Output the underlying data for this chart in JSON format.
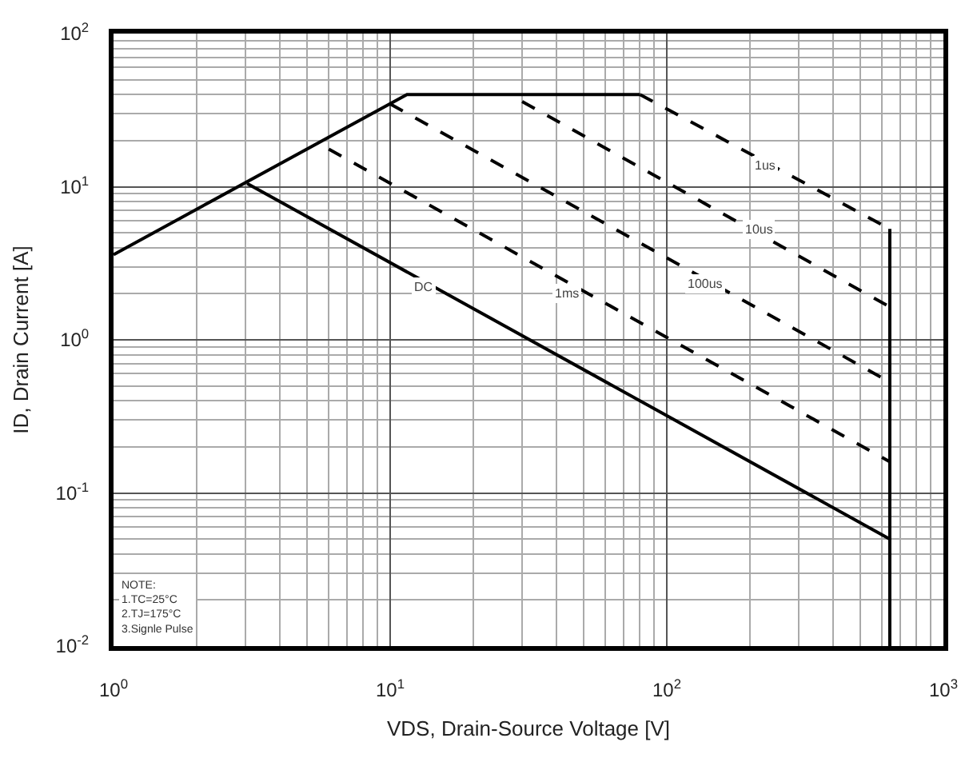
{
  "chart_data": {
    "type": "line",
    "xlabel": "VDS, Drain-Source Voltage [V]",
    "ylabel": "ID, Drain Current [A]",
    "log": "xy",
    "xlim": [
      1,
      1000
    ],
    "ylim": [
      0.01,
      100
    ],
    "xticks": [
      {
        "value": 1,
        "label": "10$^{0}$"
      },
      {
        "value": 10,
        "label": "10$^{1}$"
      },
      {
        "value": 100,
        "label": "10$^{2}$"
      },
      {
        "value": 1000,
        "label": "10$^{3}$"
      }
    ],
    "yticks": [
      {
        "value": 0.01,
        "label": "10$^{-2}$"
      },
      {
        "value": 0.1,
        "label": "10$^{-1}$"
      },
      {
        "value": 1,
        "label": "10$^{0}$"
      },
      {
        "value": 10,
        "label": "10$^{1}$"
      },
      {
        "value": 100,
        "label": "10$^{2}$"
      }
    ],
    "grid": true,
    "marker": "none",
    "series": [
      {
        "color": "#000000",
        "line_style": "solid",
        "x": [
          1,
          11.5,
          80
        ],
        "values": [
          3.6,
          40,
          40
        ]
      },
      {
        "color": "#000000",
        "line_style": "dashed",
        "x": [
          80,
          640
        ],
        "values": [
          40,
          5.3
        ]
      },
      {
        "color": "#000000",
        "line_style": "solid",
        "x": [
          640,
          640
        ],
        "values": [
          5.3,
          0.01
        ]
      },
      {
        "color": "#000000",
        "line_style": "dashed",
        "x": [
          30,
          640
        ],
        "values": [
          36,
          1.64
        ]
      },
      {
        "color": "#000000",
        "line_style": "dashed",
        "x": [
          10,
          640
        ],
        "values": [
          34.7,
          0.53
        ]
      },
      {
        "color": "#000000",
        "line_style": "dashed",
        "x": [
          6,
          640
        ],
        "values": [
          17.6,
          0.16
        ]
      },
      {
        "color": "#000000",
        "line_style": "solid",
        "x": [
          3.04,
          640
        ],
        "values": [
          10.5,
          0.05
        ]
      }
    ],
    "annotations": [
      {
        "text": "1us",
        "x": 226,
        "y": 13.9
      },
      {
        "text": "10us",
        "x": 215,
        "y": 5.2
      },
      {
        "text": "100us",
        "x": 137,
        "y": 2.3
      },
      {
        "text": "1ms",
        "x": 43.6,
        "y": 2.0
      },
      {
        "text": "DC",
        "x": 13.3,
        "y": 2.2
      },
      "NOTE:",
      "1.TC=25°C",
      "2.TJ=175°C",
      "3.Signle Pulse"
    ]
  }
}
